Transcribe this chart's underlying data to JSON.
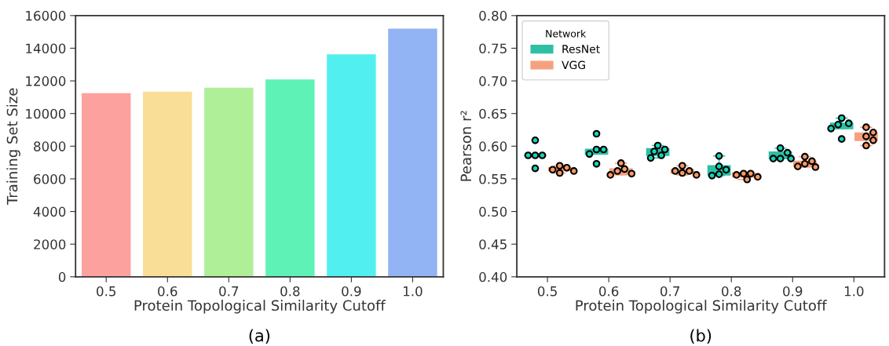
{
  "chart_data": [
    {
      "type": "bar",
      "xlabel": "Protein Topological Similarity Cutoff",
      "ylabel": "Training Set Size",
      "annotations": [
        "(a)"
      ],
      "categories": [
        "0.5",
        "0.6",
        "0.7",
        "0.8",
        "0.9",
        "1.0"
      ],
      "values": [
        11250,
        11340,
        11580,
        12090,
        13630,
        15200
      ],
      "colors": [
        "#fca19d",
        "#f9de97",
        "#aeef98",
        "#5ef2b6",
        "#52eff0",
        "#92b3f4"
      ],
      "ylim": [
        0,
        16000
      ],
      "yticks": [
        0,
        2000,
        4000,
        6000,
        8000,
        10000,
        12000,
        14000,
        16000
      ],
      "grid": false
    },
    {
      "type": "box",
      "xlabel": "Protein Topological Similarity Cutoff",
      "ylabel": "Pearson r²",
      "annotations": [
        "(b)"
      ],
      "legend_title": "Network",
      "legend": "top left",
      "categories": [
        "0.5",
        "0.6",
        "0.7",
        "0.8",
        "0.9",
        "1.0"
      ],
      "ylim": [
        0.4,
        0.8
      ],
      "yticks": [
        {
          "value": 0.4,
          "label": "0.40"
        },
        0.45,
        {
          "value": 0.5,
          "label": "0.50"
        },
        0.55,
        {
          "value": 0.6,
          "label": "0.60"
        },
        0.65,
        {
          "value": 0.7,
          "label": "0.70"
        },
        0.75,
        {
          "value": 0.8,
          "label": "0.80"
        }
      ],
      "grid": false,
      "series": [
        {
          "name": "ResNet",
          "color": "#2fbfa4",
          "boxes": [
            {
              "low": 0.586,
              "q1": 0.586,
              "median": 0.586,
              "q3": 0.586,
              "high": 0.586
            },
            {
              "low": 0.588,
              "q1": 0.588,
              "median": 0.595,
              "q3": 0.595,
              "high": 0.595
            },
            {
              "low": 0.582,
              "q1": 0.586,
              "median": 0.592,
              "q3": 0.596,
              "high": 0.601
            },
            {
              "low": 0.555,
              "q1": 0.556,
              "median": 0.564,
              "q3": 0.57,
              "high": 0.585
            },
            {
              "low": 0.581,
              "q1": 0.581,
              "median": 0.581,
              "q3": 0.591,
              "high": 0.597
            },
            {
              "low": 0.627,
              "q1": 0.627,
              "median": 0.633,
              "q3": 0.635,
              "high": 0.643
            }
          ]
        },
        {
          "name": "VGG",
          "color": "#f5a07e",
          "boxes": [
            {
              "low": 0.559,
              "q1": 0.5625,
              "median": 0.565,
              "q3": 0.567,
              "high": 0.57
            },
            {
              "low": 0.556,
              "q1": 0.557,
              "median": 0.561,
              "q3": 0.565,
              "high": 0.574
            },
            {
              "low": 0.556,
              "q1": 0.559,
              "median": 0.562,
              "q3": 0.564,
              "high": 0.57
            },
            {
              "low": 0.549,
              "q1": 0.553,
              "median": 0.556,
              "q3": 0.559,
              "high": 0.559
            },
            {
              "low": 0.568,
              "q1": 0.569,
              "median": 0.573,
              "q3": 0.577,
              "high": 0.584
            },
            {
              "low": 0.601,
              "q1": 0.609,
              "median": 0.615,
              "q3": 0.62,
              "high": 0.629
            }
          ]
        },
        {
          "type": "scatter",
          "color": "#12d6b9",
          "x": [
            "0.5",
            "0.5",
            "0.5",
            "0.5",
            "0.5",
            "0.6",
            "0.6",
            "0.6",
            "0.6",
            "0.6",
            "0.7",
            "0.7",
            "0.7",
            "0.7",
            "0.7",
            "0.8",
            "0.8",
            "0.8",
            "0.8",
            "0.8",
            "0.9",
            "0.9",
            "0.9",
            "0.9",
            "0.9",
            "1.0",
            "1.0",
            "1.0",
            "1.0",
            "1.0"
          ],
          "values": [
            0.609,
            0.586,
            0.586,
            0.586,
            0.566,
            0.619,
            0.595,
            0.595,
            0.588,
            0.573,
            0.601,
            0.595,
            0.592,
            0.586,
            0.582,
            0.585,
            0.569,
            0.564,
            0.557,
            0.555,
            0.597,
            0.59,
            0.581,
            0.581,
            0.581,
            0.643,
            0.635,
            0.633,
            0.627,
            0.611
          ]
        },
        {
          "type": "scatter",
          "color": "#ff9966",
          "x": [
            "0.5",
            "0.5",
            "0.5",
            "0.5",
            "0.5",
            "0.6",
            "0.6",
            "0.6",
            "0.6",
            "0.6",
            "0.7",
            "0.7",
            "0.7",
            "0.7",
            "0.7",
            "0.8",
            "0.8",
            "0.8",
            "0.8",
            "0.8",
            "0.9",
            "0.9",
            "0.9",
            "0.9",
            "0.9",
            "1.0",
            "1.0",
            "1.0",
            "1.0",
            "1.0"
          ],
          "values": [
            0.57,
            0.567,
            0.564,
            0.562,
            0.559,
            0.574,
            0.565,
            0.562,
            0.558,
            0.556,
            0.57,
            0.562,
            0.562,
            0.559,
            0.556,
            0.558,
            0.558,
            0.556,
            0.553,
            0.549,
            0.584,
            0.577,
            0.573,
            0.569,
            0.568,
            0.629,
            0.621,
            0.615,
            0.609,
            0.601
          ]
        }
      ]
    }
  ]
}
